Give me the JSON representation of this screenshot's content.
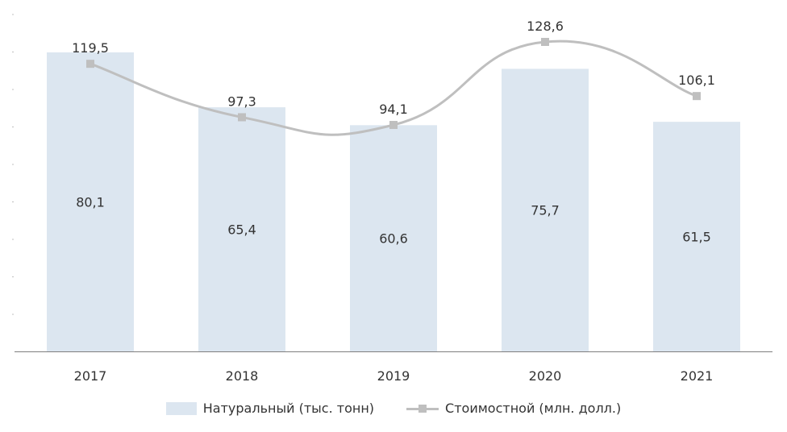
{
  "chart_data": {
    "type": "bar",
    "categories": [
      "2017",
      "2018",
      "2019",
      "2020",
      "2021"
    ],
    "series": [
      {
        "name": "Натуральный (тыс. тонн)",
        "kind": "bar",
        "color": "#dce6f0",
        "values": [
          80.1,
          65.4,
          60.6,
          75.7,
          61.5
        ],
        "labels": [
          "80,1",
          "65,4",
          "60,6",
          "75,7",
          "61,5"
        ]
      },
      {
        "name": "Стоимостной (млн. долл.)",
        "kind": "line",
        "color": "#bfbfbf",
        "marker": "square",
        "smooth": true,
        "values": [
          119.5,
          97.3,
          94.1,
          128.6,
          106.1
        ],
        "labels": [
          "119,5",
          "97,3",
          "94,1",
          "128,6",
          "106,1"
        ]
      }
    ],
    "y_bar_range": [
      0,
      80.1
    ],
    "y_line_range": [
      0,
      132.6
    ],
    "grid": false,
    "legend_position": "bottom"
  }
}
